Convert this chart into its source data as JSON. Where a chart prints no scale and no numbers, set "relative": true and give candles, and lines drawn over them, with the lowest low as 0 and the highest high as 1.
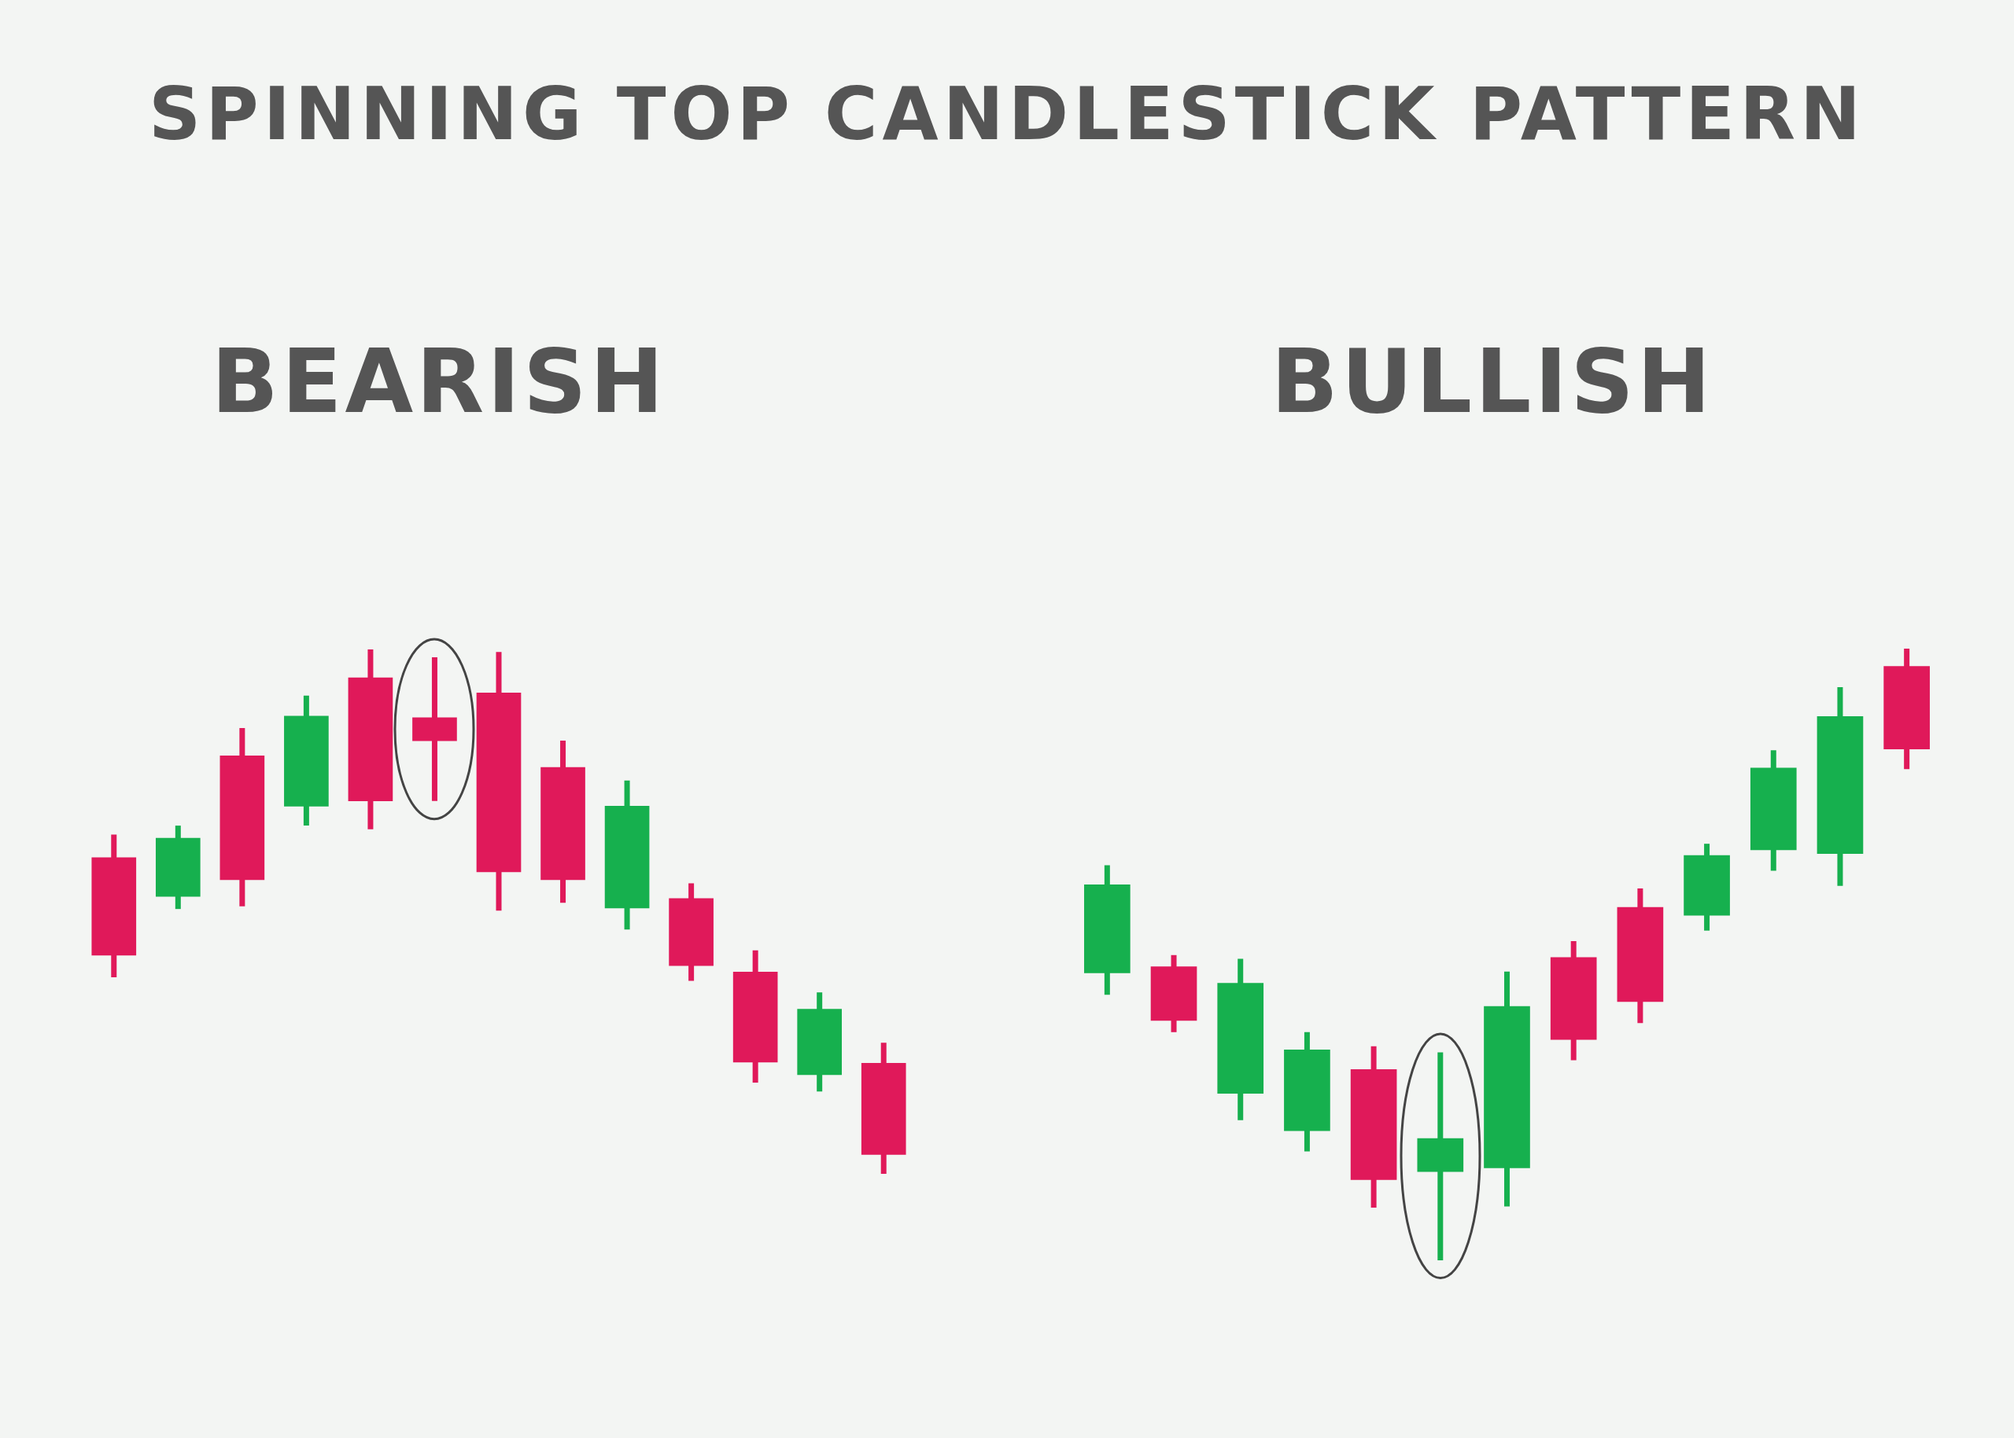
{
  "chart_data": [
    {
      "type": "candlestick",
      "title": "SPINNING TOP CANDLESTICK PATTERN",
      "subtitle": "BEARISH",
      "relative": true,
      "tick_labels": false,
      "categories": [
        null,
        null,
        null,
        null,
        null,
        null,
        null,
        null,
        null,
        null,
        null,
        null,
        null
      ],
      "ohlc": [
        [
          0.603,
          0.647,
          0.375,
          0.417
        ],
        [
          0.529,
          0.664,
          0.505,
          0.64
        ],
        [
          0.797,
          0.85,
          0.51,
          0.561
        ],
        [
          0.701,
          0.912,
          0.664,
          0.873
        ],
        [
          0.946,
          1,
          0.657,
          0.711
        ],
        [
          0.87,
          0.985,
          0.711,
          0.826
        ],
        [
          0.917,
          0.995,
          0.502,
          0.576
        ],
        [
          0.775,
          0.826,
          0.517,
          0.561
        ],
        [
          0.507,
          0.75,
          0.466,
          0.701
        ],
        [
          0.525,
          0.554,
          0.368,
          0.397
        ],
        [
          0.385,
          0.426,
          0.174,
          0.213
        ],
        [
          0.189,
          0.346,
          0.157,
          0.314
        ],
        [
          0.211,
          0.25,
          0,
          0.037
        ]
      ],
      "colors": [
        "#e0195a",
        "#16b04e",
        "#e0195a",
        "#16b04e",
        "#e0195a",
        "#e0195a",
        "#e0195a",
        "#e0195a",
        "#16b04e",
        "#e0195a",
        "#e0195a",
        "#16b04e",
        "#e0195a"
      ]
    },
    {
      "type": "candlestick",
      "subtitle": "BULLISH",
      "relative": true,
      "tick_labels": false,
      "categories": [
        null,
        null,
        null,
        null,
        null,
        null,
        null,
        null,
        null,
        null,
        null,
        null,
        null
      ],
      "ohlc": [
        [
          0.47,
          0.646,
          0.434,
          0.614
        ],
        [
          0.48,
          0.499,
          0.373,
          0.392
        ],
        [
          0.273,
          0.493,
          0.229,
          0.453
        ],
        [
          0.212,
          0.373,
          0.178,
          0.344
        ],
        [
          0.312,
          0.35,
          0.086,
          0.132
        ],
        [
          0.145,
          0.34,
          0,
          0.199
        ],
        [
          0.151,
          0.472,
          0.088,
          0.415
        ],
        [
          0.495,
          0.522,
          0.327,
          0.361
        ],
        [
          0.577,
          0.608,
          0.388,
          0.423
        ],
        [
          0.564,
          0.681,
          0.539,
          0.662
        ],
        [
          0.671,
          0.834,
          0.637,
          0.805
        ],
        [
          0.665,
          0.937,
          0.612,
          0.889
        ],
        [
          0.971,
          1,
          0.803,
          0.836
        ]
      ],
      "colors": [
        "#16b04e",
        "#e0195a",
        "#16b04e",
        "#16b04e",
        "#e0195a",
        "#16b04e",
        "#16b04e",
        "#e0195a",
        "#e0195a",
        "#16b04e",
        "#16b04e",
        "#16b04e",
        "#e0195a"
      ]
    }
  ]
}
